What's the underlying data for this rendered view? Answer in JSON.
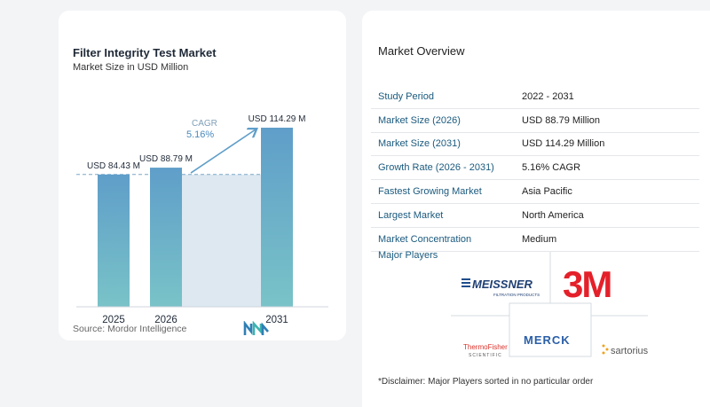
{
  "chart_data": {
    "type": "bar",
    "title": "Filter Integrity Test Market",
    "subtitle": "Market Size in USD Million",
    "categories": [
      "2025",
      "2026",
      "2031"
    ],
    "values": [
      84.43,
      88.79,
      114.29
    ],
    "data_labels": [
      "USD 84.43 M",
      "USD 88.79 M",
      "USD 114.29 M"
    ],
    "cagr_label": "CAGR",
    "cagr_value": "5.16%",
    "xlabel": "",
    "ylabel": "",
    "ylim": [
      0,
      114.29
    ],
    "grid": false,
    "bar_color": "#5f9ec9",
    "bar_color_bottom": "#79c3c8",
    "band_color": "#dde8f1"
  },
  "source": "Source:  Mordor Intelligence",
  "overview": {
    "title": "Market Overview",
    "rows": [
      {
        "label": "Study Period",
        "value": "2022 - 2031"
      },
      {
        "label": "Market Size (2026)",
        "value": "USD 88.79 Million"
      },
      {
        "label": "Market Size (2031)",
        "value": "USD 114.29 Million"
      },
      {
        "label": "Growth Rate (2026 - 2031)",
        "value": "5.16% CAGR"
      },
      {
        "label": "Fastest Growing Market",
        "value": "Asia Pacific"
      },
      {
        "label": "Largest Market",
        "value": "North America"
      },
      {
        "label": "Market Concentration",
        "value": "Medium"
      }
    ],
    "players_title": "Major Players",
    "players": {
      "meissner": "MEISSNER",
      "meissner_sub": "FILTRATION PRODUCTS",
      "threem": "3M",
      "merck": "MERCK",
      "thermo_top": "ThermoFisher",
      "thermo_bottom": "SCIENTIFIC",
      "sartorius": "sartorius"
    },
    "disclaimer": "*Disclaimer: Major Players sorted in no particular order"
  }
}
